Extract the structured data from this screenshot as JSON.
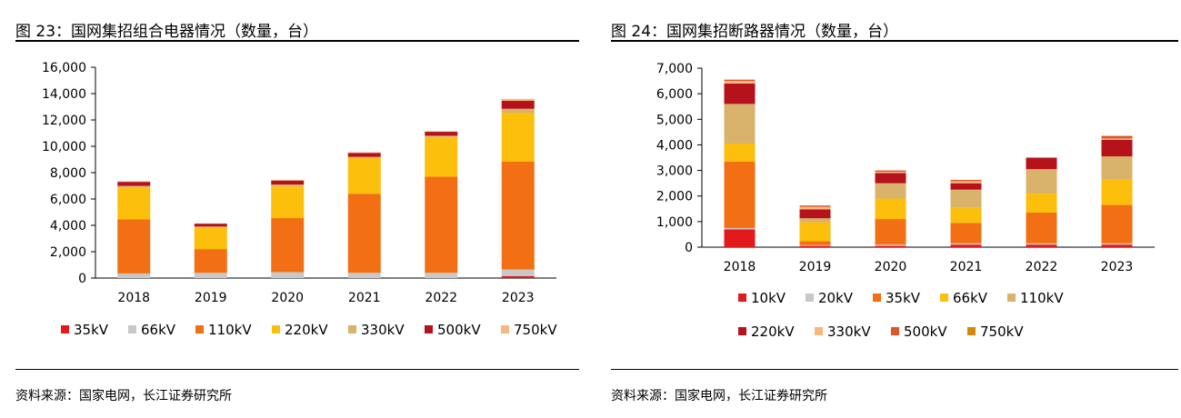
{
  "charts": [
    {
      "title": "图 23：国网集招组合电器情况（数量，台）",
      "source": "资料来源：国家电网，长江证券研究所",
      "chart_data": {
        "type": "bar",
        "stacked": true,
        "categories": [
          "2018",
          "2019",
          "2020",
          "2021",
          "2022",
          "2023"
        ],
        "ylim": [
          0,
          16000
        ],
        "yticks": [
          "0",
          "2,000",
          "4,000",
          "6,000",
          "8,000",
          "10,000",
          "12,000",
          "14,000",
          "16,000"
        ],
        "legend_position": "bottom",
        "series": [
          {
            "name": "35kV",
            "color": "#e31a1c",
            "values": [
              0,
              0,
              0,
              0,
              0,
              150
            ]
          },
          {
            "name": "66kV",
            "color": "#c8c8c8",
            "values": [
              350,
              400,
              450,
              400,
              400,
              500
            ]
          },
          {
            "name": "110kV",
            "color": "#f36f13",
            "values": [
              4100,
              1800,
              4100,
              6000,
              7300,
              8200
            ]
          },
          {
            "name": "220kV",
            "color": "#fcbf0b",
            "values": [
              2400,
              1650,
              2400,
              2700,
              3000,
              3700
            ]
          },
          {
            "name": "330kV",
            "color": "#d9b26b",
            "values": [
              150,
              60,
              150,
              100,
              100,
              300
            ]
          },
          {
            "name": "500kV",
            "color": "#b6121c",
            "values": [
              300,
              220,
              300,
              300,
              300,
              600
            ]
          },
          {
            "name": "750kV",
            "color": "#f8b77e",
            "values": [
              50,
              20,
              50,
              50,
              50,
              150
            ]
          }
        ]
      }
    },
    {
      "title": "图 24：国网集招断路器情况（数量，台）",
      "source": "资料来源：国家电网，长江证券研究所",
      "chart_data": {
        "type": "bar",
        "stacked": true,
        "categories": [
          "2018",
          "2019",
          "2020",
          "2021",
          "2022",
          "2023"
        ],
        "ylim": [
          0,
          7000
        ],
        "yticks": [
          "0",
          "1,000",
          "2,000",
          "3,000",
          "4,000",
          "5,000",
          "6,000",
          "7,000"
        ],
        "legend_position": "bottom",
        "series": [
          {
            "name": "10kV",
            "color": "#e31a1c",
            "values": [
              700,
              50,
              50,
              100,
              100,
              100
            ]
          },
          {
            "name": "20kV",
            "color": "#c8c8c8",
            "values": [
              50,
              30,
              50,
              50,
              50,
              50
            ]
          },
          {
            "name": "35kV",
            "color": "#f36f13",
            "values": [
              2600,
              150,
              1000,
              800,
              1200,
              1500
            ]
          },
          {
            "name": "66kV",
            "color": "#fcbf0b",
            "values": [
              700,
              750,
              800,
              600,
              750,
              1000
            ]
          },
          {
            "name": "110kV",
            "color": "#d9b26b",
            "values": [
              1550,
              150,
              600,
              700,
              950,
              900
            ]
          },
          {
            "name": "220kV",
            "color": "#b6121c",
            "values": [
              800,
              350,
              400,
              250,
              450,
              650
            ]
          },
          {
            "name": "330kV",
            "color": "#f8b77e",
            "values": [
              100,
              100,
              50,
              80,
              0,
              50
            ]
          },
          {
            "name": "500kV",
            "color": "#e0552a",
            "values": [
              50,
              50,
              50,
              50,
              0,
              100
            ]
          },
          {
            "name": "750kV",
            "color": "#d9870a",
            "values": [
              0,
              0,
              0,
              0,
              0,
              0
            ]
          }
        ]
      }
    }
  ]
}
